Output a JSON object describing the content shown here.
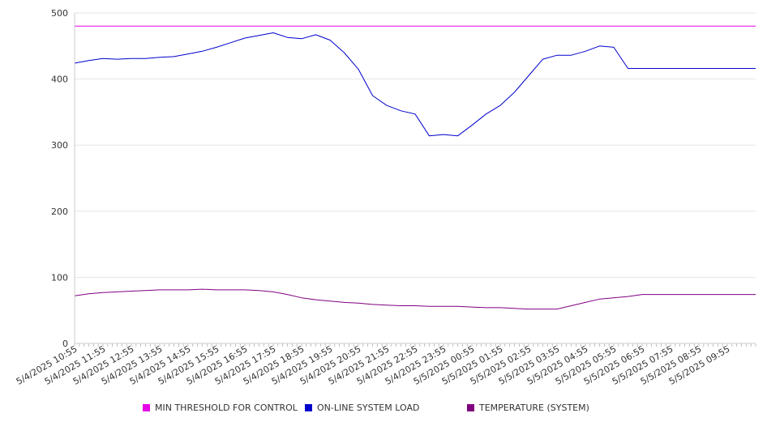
{
  "chart_data": {
    "type": "line",
    "ylim": [
      0,
      500
    ],
    "y_ticks": [
      0,
      100,
      200,
      300,
      400,
      500
    ],
    "grid": "horizontal",
    "legend_position": "bottom",
    "x_tick_labels": [
      "5/4/2025 10:55",
      "5/4/2025 11:55",
      "5/4/2025 12:55",
      "5/4/2025 13:55",
      "5/4/2025 14:55",
      "5/4/2025 15:55",
      "5/4/2025 16:55",
      "5/4/2025 17:55",
      "5/4/2025 18:55",
      "5/4/2025 19:55",
      "5/4/2025 20:55",
      "5/4/2025 21:55",
      "5/4/2025 22:55",
      "5/4/2025 23:55",
      "5/5/2025 00:55",
      "5/5/2025 01:55",
      "5/5/2025 02:55",
      "5/5/2025 03:55",
      "5/5/2025 04:55",
      "5/5/2025 05:55",
      "5/5/2025 06:55",
      "5/5/2025 07:55",
      "5/5/2025 08:55",
      "5/5/2025 09:55"
    ],
    "x_hours": [
      0,
      0.5,
      1,
      1.5,
      2,
      2.5,
      3,
      3.5,
      4,
      4.5,
      5,
      5.5,
      6,
      6.5,
      7,
      7.5,
      8,
      8.5,
      9,
      9.5,
      10,
      10.5,
      11,
      11.5,
      12,
      12.5,
      13,
      13.5,
      14,
      14.5,
      15,
      15.5,
      16,
      16.5,
      17,
      17.5,
      18,
      18.5,
      19,
      19.5,
      20,
      20.5,
      21,
      21.5,
      22,
      22.5,
      23,
      23.5,
      24
    ],
    "series": [
      {
        "name": "MIN THRESHOLD FOR CONTROL",
        "color": "#e600e6",
        "values": [
          480,
          480,
          480,
          480,
          480,
          480,
          480,
          480,
          480,
          480,
          480,
          480,
          480,
          480,
          480,
          480,
          480,
          480,
          480,
          480,
          480,
          480,
          480,
          480,
          480,
          480,
          480,
          480,
          480,
          480,
          480,
          480,
          480,
          480,
          480,
          480,
          480,
          480,
          480,
          480,
          480,
          480,
          480,
          480,
          480,
          480,
          480,
          480,
          480
        ]
      },
      {
        "name": "ON-LINE SYSTEM LOAD",
        "color": "#0000cc",
        "values": [
          424,
          428,
          431,
          430,
          431,
          431,
          433,
          434,
          438,
          442,
          448,
          455,
          462,
          466,
          470,
          463,
          461,
          467,
          459,
          440,
          415,
          375,
          360,
          352,
          347,
          314,
          316,
          314,
          330,
          347,
          360,
          380,
          405,
          430,
          436,
          436,
          442,
          450,
          448,
          416,
          416,
          416,
          416,
          416,
          416,
          416,
          416,
          416,
          416
        ]
      },
      {
        "name": "TEMPERATURE (SYSTEM)",
        "color": "#800080",
        "values": [
          72,
          75,
          77,
          78,
          79,
          80,
          81,
          81,
          81,
          82,
          81,
          81,
          81,
          80,
          78,
          74,
          69,
          66,
          64,
          62,
          61,
          59,
          58,
          57,
          57,
          56,
          56,
          56,
          55,
          54,
          54,
          53,
          52,
          52,
          52,
          57,
          62,
          67,
          69,
          71,
          74,
          74,
          74,
          74,
          74,
          74,
          74,
          74,
          74
        ]
      }
    ]
  }
}
